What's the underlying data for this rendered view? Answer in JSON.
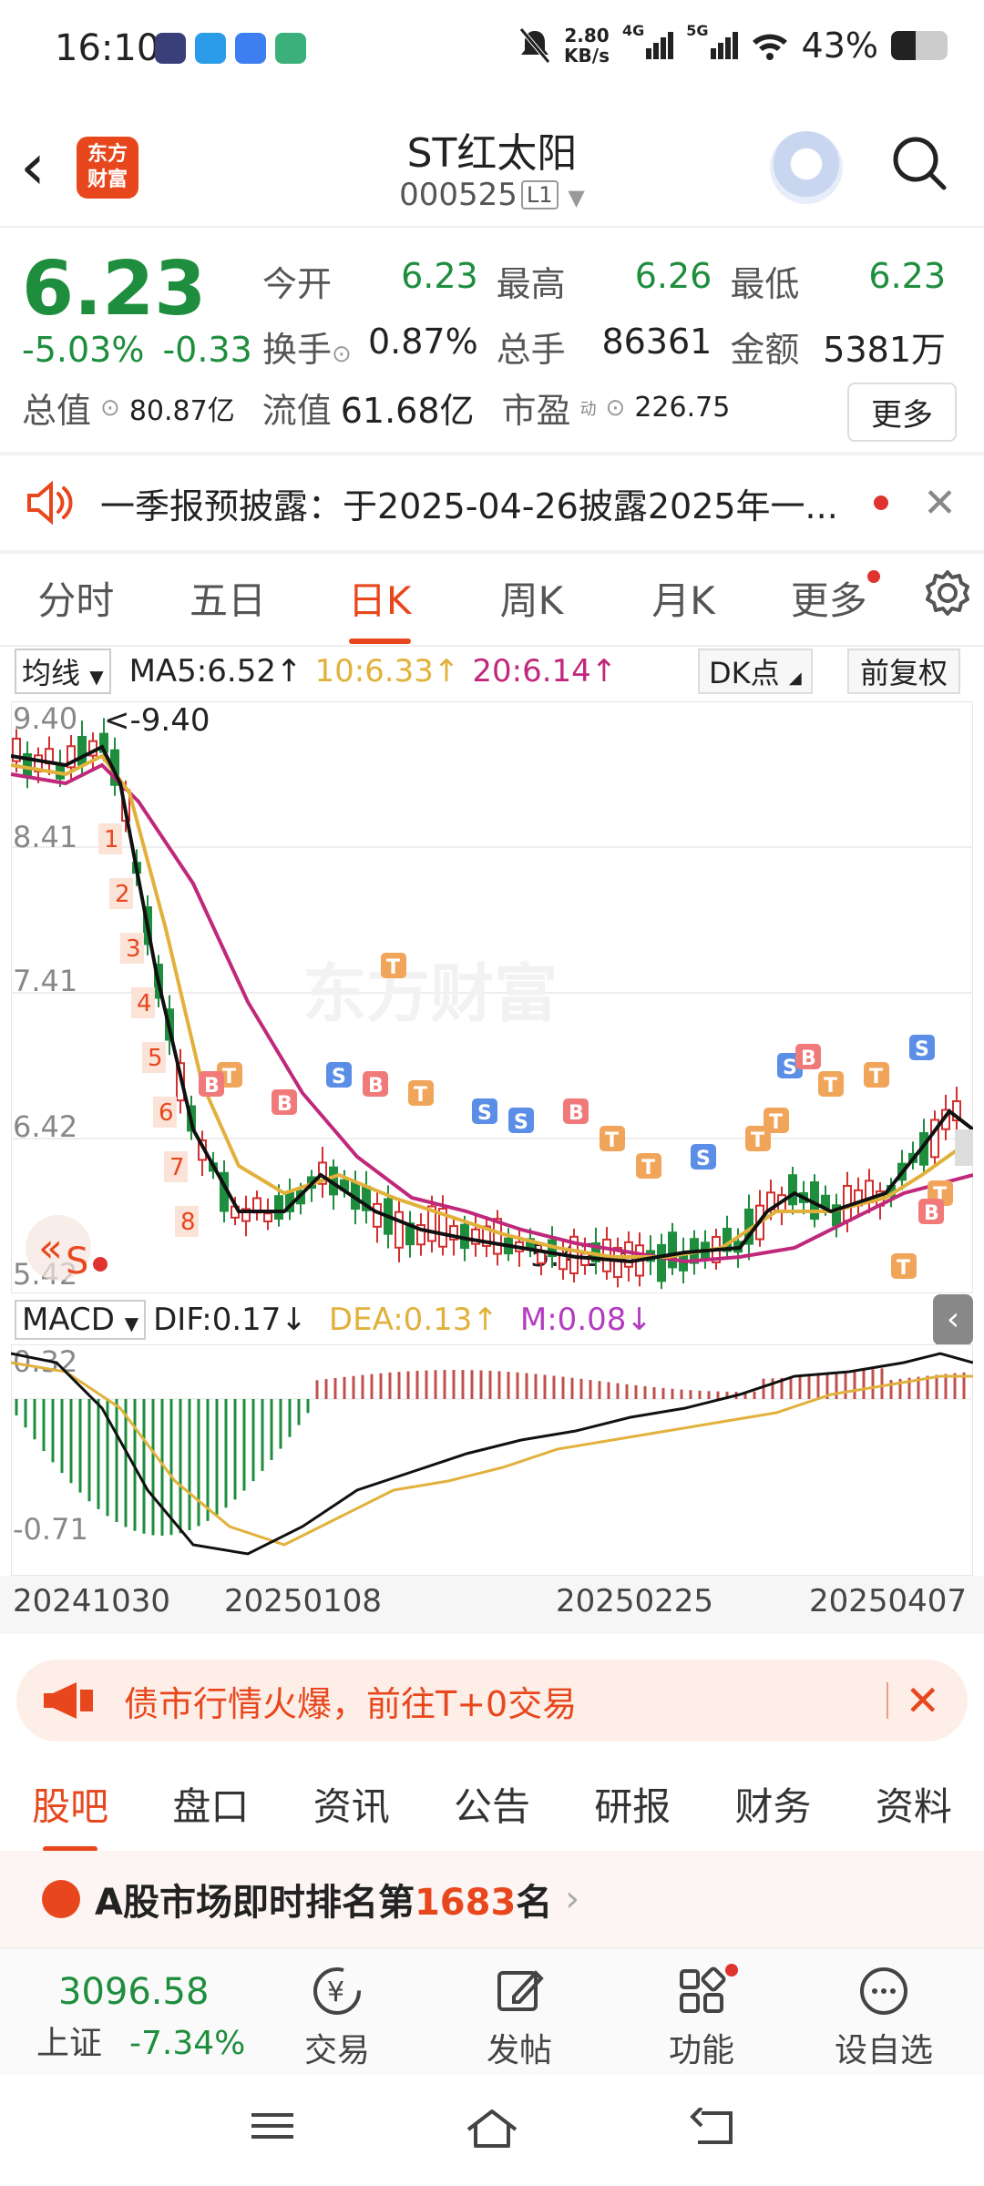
{
  "status": {
    "time": "16:10",
    "net_speed": "2.80\nKB/s",
    "net_speed_top": "2.80",
    "net_speed_bottom": "KB/s",
    "signal1": "4G",
    "signal2": "5G",
    "battery": "43%"
  },
  "header": {
    "title": "ST红太阳",
    "code": "000525",
    "level": "L1",
    "logo_text": "东方\n财富"
  },
  "quote": {
    "price": "6.23",
    "change_pct": "-5.03%",
    "change_amt": "-0.33",
    "rows": [
      [
        {
          "label": "今开",
          "value": "6.23"
        },
        {
          "label": "最高",
          "value": "6.26"
        },
        {
          "label": "最低",
          "value": "6.23"
        }
      ],
      [
        {
          "label": "换手",
          "value": "0.87%"
        },
        {
          "label": "总手",
          "value": "86361"
        },
        {
          "label": "金额",
          "value": "5381万"
        }
      ]
    ],
    "total_value_label": "总值",
    "total_value": "80.87亿",
    "float_label": "流值",
    "float_value": "61.68亿",
    "pe_label": "市盈",
    "pe_sup": "动",
    "pe_value": "226.75",
    "more": "更多"
  },
  "notice": {
    "text": "一季报预披露：于2025-04-26披露2025年一..."
  },
  "tabs": [
    {
      "label": "分时"
    },
    {
      "label": "五日"
    },
    {
      "label": "日K"
    },
    {
      "label": "周K"
    },
    {
      "label": "月K"
    },
    {
      "label": "更多"
    }
  ],
  "ma": {
    "select": "均线",
    "ma5": "MA5:6.52↑",
    "ma10": "10:6.33↑",
    "ma20": "20:6.14↑",
    "dk": "DK点",
    "fq": "前复权"
  },
  "kline": {
    "y_labels": [
      "9.40",
      "8.41",
      "7.41",
      "6.42",
      "5.42"
    ],
    "high_note": "<-9.40",
    "low_note": "5.42->",
    "watermark": "东方财富",
    "s_label": "S"
  },
  "macd": {
    "select": "MACD",
    "dif": "DIF:0.17↓",
    "dea": "DEA:0.13↑",
    "m": "M:0.08↓",
    "y_top": "0.32",
    "y_bottom": "-0.71"
  },
  "dates": [
    "20241030",
    "20250108",
    "20250225",
    "20250407"
  ],
  "banner": {
    "text": "债市行情火爆，前往T+0交易"
  },
  "bottom_tabs": [
    {
      "label": "股吧"
    },
    {
      "label": "盘口"
    },
    {
      "label": "资讯"
    },
    {
      "label": "公告"
    },
    {
      "label": "研报"
    },
    {
      "label": "财务"
    },
    {
      "label": "资料"
    }
  ],
  "rank": {
    "prefix": "A股市场即时排名第",
    "number": "1683",
    "suffix": "名"
  },
  "bottom": {
    "index_value": "3096.58",
    "index_name": "上证",
    "index_change": "-7.34%",
    "items": [
      {
        "label": "交易"
      },
      {
        "label": "发帖"
      },
      {
        "label": "功能"
      },
      {
        "label": "设自选"
      }
    ]
  },
  "colors": {
    "accent": "#e8471d",
    "down": "#1e8e3e",
    "up": "#d32f2f",
    "ma10": "#e2b13c",
    "ma20": "#c0287b"
  }
}
